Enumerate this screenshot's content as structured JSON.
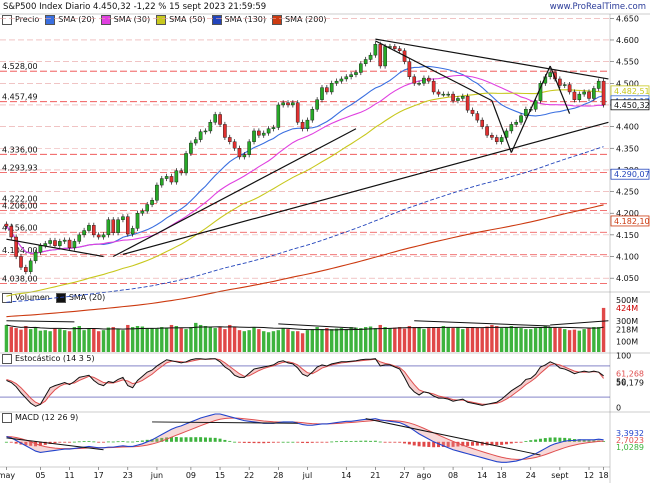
{
  "header": {
    "title": "S&P500 Index Diario 4.450,32 -1,22 % 15 sept 2023 21:59:59",
    "site": "www.ProRealTime.com"
  },
  "legends": {
    "price": [
      {
        "label": "Precio",
        "color": "#ffffff"
      },
      {
        "label": "SMA (20)",
        "color": "#3a6fe0"
      },
      {
        "label": "SMA (30)",
        "color": "#e040e0"
      },
      {
        "label": "SMA (50)",
        "color": "#c8c81e"
      },
      {
        "label": "SMA (130)",
        "color": "#2244bb"
      },
      {
        "label": "SMA (200)",
        "color": "#cc3a10"
      }
    ],
    "volume": [
      {
        "label": "Volumen",
        "color": "#ffffff"
      },
      {
        "label": "SMA (20)",
        "color": "#111111"
      }
    ],
    "stoch": [
      {
        "label": "Estocástico (14 3 5)",
        "color": "#ffffff"
      }
    ],
    "macd": [
      {
        "label": "MACD (12 26 9)",
        "color": "#ffffff"
      }
    ]
  },
  "chart_data": [
    {
      "type": "candlestick",
      "title": "S&P500 Index Diario",
      "ylim": [
        4025,
        4660
      ],
      "yticks": [
        "4.650",
        "4.600",
        "4.550",
        "4.500",
        "4.450",
        "4.400",
        "4.350",
        "4.300",
        "4.250",
        "4.200",
        "4.150",
        "4.100",
        "4.050"
      ],
      "level_labels": [
        "4.528,00",
        "4.457,49",
        "4.336,00",
        "4.293,93",
        "4.222,00",
        "4.206,00",
        "4.156,00",
        "4.104,00",
        "4.038,00"
      ],
      "last_labels": [
        "4.482,51",
        "4.464,17",
        "4.450,32",
        "4.290,07",
        "4.182,10"
      ],
      "x_labels": [
        "may",
        "05",
        "11",
        "17",
        "23",
        "jun",
        "09",
        "15",
        "22",
        "28",
        "jul",
        "14",
        "21",
        "27",
        "ago",
        "08",
        "14",
        "18",
        "24",
        "sept",
        "12",
        "18"
      ],
      "close": [
        4170,
        4145,
        4100,
        4075,
        4065,
        4090,
        4110,
        4125,
        4130,
        4137,
        4125,
        4135,
        4138,
        4120,
        4135,
        4150,
        4160,
        4172,
        4150,
        4145,
        4150,
        4185,
        4155,
        4185,
        4192,
        4152,
        4165,
        4200,
        4205,
        4220,
        4230,
        4265,
        4280,
        4285,
        4272,
        4298,
        4293,
        4338,
        4362,
        4370,
        4388,
        4390,
        4410,
        4428,
        4405,
        4375,
        4365,
        4350,
        4330,
        4335,
        4365,
        4390,
        4380,
        4385,
        4395,
        4398,
        4450,
        4455,
        4450,
        4455,
        4410,
        4395,
        4415,
        4440,
        4462,
        4490,
        4480,
        4500,
        4505,
        4510,
        4515,
        4520,
        4525,
        4545,
        4555,
        4565,
        4590,
        4540,
        4585,
        4585,
        4580,
        4575,
        4550,
        4515,
        4500,
        4500,
        4512,
        4505,
        4480,
        4475,
        4475,
        4475,
        4460,
        4465,
        4470,
        4438,
        4430,
        4415,
        4400,
        4380,
        4375,
        4365,
        4375,
        4390,
        4405,
        4410,
        4425,
        4440,
        4440,
        4460,
        4500,
        4515,
        4525,
        4510,
        4495,
        4497,
        4480,
        4462,
        4475,
        4480,
        4465,
        4488,
        4505,
        4450
      ],
      "sma_periods": [
        20,
        30,
        50,
        130,
        200
      ]
    },
    {
      "type": "bar",
      "title": "Volumen",
      "yticks": [
        "500M",
        "300M",
        "218M",
        "100M"
      ],
      "last_label": "424M",
      "values_m": [
        260,
        240,
        230,
        215,
        250,
        220,
        240,
        205,
        210,
        200,
        230,
        220,
        210,
        200,
        240,
        250,
        210,
        230,
        225,
        200,
        210,
        235,
        240,
        220,
        210,
        260,
        240,
        250,
        245,
        230,
        230,
        225,
        240,
        235,
        260,
        250,
        230,
        220,
        240,
        280,
        260,
        250,
        240,
        230,
        240,
        220,
        260,
        240,
        210,
        200,
        210,
        240,
        220,
        200,
        190,
        200,
        210,
        230,
        220,
        200,
        200,
        180,
        210,
        220,
        240,
        220,
        230,
        220,
        225,
        230,
        220,
        240,
        235,
        230,
        240,
        245,
        230,
        260,
        240,
        230,
        235,
        240,
        225,
        250,
        240,
        235,
        220,
        230,
        240,
        230,
        250,
        235,
        230,
        240,
        220,
        230,
        240,
        235,
        230,
        245,
        260,
        250,
        230,
        240,
        250,
        240,
        230,
        220,
        220,
        230,
        240,
        250,
        240,
        235,
        230,
        220,
        210,
        215,
        205,
        220,
        230,
        240,
        240,
        424
      ]
    },
    {
      "type": "line",
      "title": "Estocástico (14 3 5)",
      "ylim": [
        -5,
        105
      ],
      "yticks": [
        "100",
        "50",
        "0"
      ],
      "last_labels": [
        "61,268",
        "56,179"
      ],
      "k": [
        52,
        48,
        40,
        28,
        18,
        8,
        2,
        6,
        22,
        38,
        42,
        45,
        48,
        44,
        50,
        58,
        60,
        62,
        52,
        45,
        42,
        50,
        48,
        54,
        58,
        42,
        38,
        52,
        60,
        68,
        72,
        80,
        86,
        92,
        90,
        88,
        86,
        88,
        92,
        94,
        94,
        93,
        94,
        94,
        88,
        78,
        72,
        62,
        58,
        58,
        66,
        74,
        76,
        78,
        80,
        82,
        88,
        90,
        86,
        84,
        76,
        64,
        60,
        68,
        78,
        82,
        80,
        84,
        86,
        88,
        88,
        89,
        90,
        92,
        93,
        93,
        94,
        80,
        82,
        82,
        78,
        74,
        58,
        40,
        30,
        24,
        30,
        28,
        22,
        18,
        18,
        16,
        12,
        14,
        16,
        10,
        8,
        6,
        4,
        6,
        8,
        10,
        16,
        24,
        32,
        38,
        44,
        54,
        56,
        64,
        78,
        82,
        88,
        84,
        76,
        74,
        70,
        65,
        68,
        70,
        68,
        70,
        68,
        61
      ],
      "d": [
        54,
        51,
        46,
        38,
        28,
        18,
        10,
        6,
        12,
        24,
        34,
        41,
        45,
        46,
        47,
        52,
        56,
        60,
        58,
        53,
        48,
        47,
        47,
        50,
        53,
        51,
        46,
        48,
        52,
        58,
        64,
        72,
        79,
        86,
        89,
        89,
        88,
        87,
        89,
        91,
        93,
        93,
        93,
        94,
        92,
        86,
        79,
        72,
        65,
        60,
        61,
        66,
        71,
        75,
        78,
        80,
        84,
        87,
        88,
        86,
        82,
        74,
        67,
        65,
        70,
        76,
        79,
        82,
        84,
        86,
        87,
        88,
        89,
        90,
        91,
        92,
        93,
        88,
        85,
        83,
        80,
        77,
        69,
        56,
        44,
        34,
        30,
        28,
        26,
        22,
        20,
        18,
        15,
        14,
        14,
        12,
        10,
        8,
        6,
        6,
        7,
        8,
        11,
        16,
        22,
        29,
        36,
        44,
        50,
        57,
        66,
        74,
        82,
        84,
        82,
        78,
        74,
        70,
        68,
        68,
        68,
        69,
        68,
        56
      ]
    },
    {
      "type": "line",
      "title": "MACD (12 26 9)",
      "last_labels": [
        "3,3932",
        "2,7023",
        "1,0289"
      ],
      "macd": [
        8,
        6,
        2,
        -2,
        -6,
        -10,
        -14,
        -16,
        -15,
        -14,
        -13,
        -12,
        -11,
        -11,
        -10,
        -9,
        -8,
        -7,
        -8,
        -9,
        -9,
        -8,
        -8,
        -7,
        -6,
        -7,
        -7,
        -5,
        -3,
        0,
        3,
        7,
        11,
        15,
        19,
        22,
        24,
        27,
        30,
        33,
        36,
        38,
        40,
        42,
        42,
        40,
        38,
        36,
        34,
        32,
        31,
        30,
        29,
        28,
        28,
        28,
        29,
        30,
        30,
        30,
        28,
        26,
        25,
        25,
        26,
        27,
        27,
        28,
        29,
        30,
        31,
        31,
        32,
        33,
        34,
        34,
        35,
        33,
        32,
        31,
        30,
        29,
        26,
        22,
        17,
        12,
        8,
        4,
        0,
        -3,
        -6,
        -9,
        -12,
        -14,
        -16,
        -18,
        -20,
        -22,
        -24,
        -26,
        -28,
        -30,
        -31,
        -31,
        -30,
        -29,
        -27,
        -24,
        -21,
        -18,
        -14,
        -10,
        -6,
        -3,
        -1,
        1,
        2,
        2,
        3,
        3,
        3,
        3,
        4,
        3
      ]
    }
  ]
}
